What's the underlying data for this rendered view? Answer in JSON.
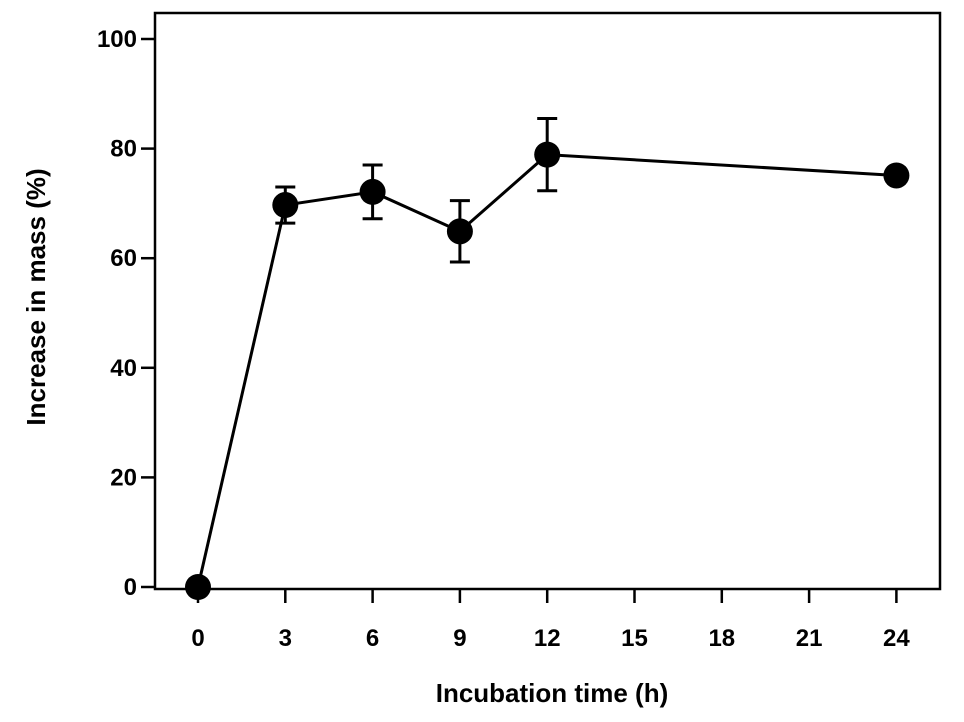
{
  "chart_data": {
    "type": "line",
    "title": "",
    "xlabel": "Incubation time (h)",
    "ylabel": "Increase in mass (%)",
    "xlim": [
      -1.5,
      24.8
    ],
    "ylim": [
      0,
      105
    ],
    "xticks": [
      0,
      3,
      6,
      9,
      12,
      15,
      18,
      21,
      24
    ],
    "yticks": [
      0,
      20,
      40,
      60,
      80,
      100
    ],
    "grid": false,
    "legend": "none",
    "series": [
      {
        "name": "Increase in mass",
        "x": [
          0,
          3,
          6,
          9,
          12,
          24
        ],
        "y": [
          0,
          69.7,
          72.1,
          64.9,
          78.9,
          75.1
        ],
        "error": [
          0,
          3.3,
          4.9,
          5.6,
          6.6,
          0
        ]
      }
    ],
    "colors": {
      "line": "#000000",
      "marker": "#000000",
      "axis": "#000000"
    }
  }
}
